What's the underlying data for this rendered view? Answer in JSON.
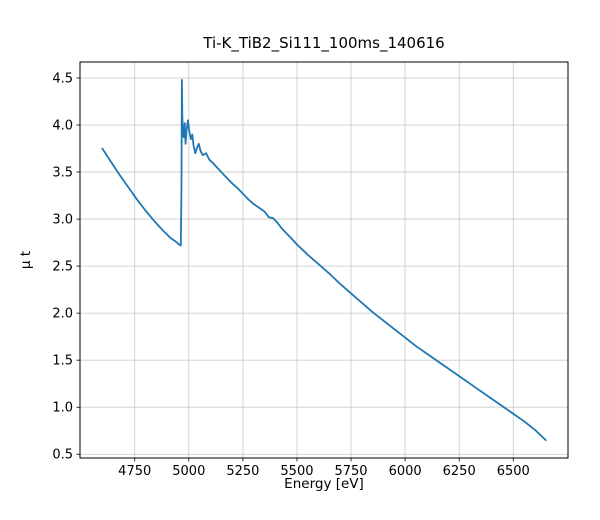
{
  "chart_data": {
    "type": "line",
    "title": "Ti-K_TiB2_Si111_100ms_140616",
    "xlabel": "Energy [eV]",
    "ylabel": "μ t",
    "xlim": [
      4497,
      6753
    ],
    "ylim": [
      0.46,
      4.67
    ],
    "xticks": [
      4750,
      5000,
      5250,
      5500,
      5750,
      6000,
      6250,
      6500
    ],
    "yticks": [
      0.5,
      1.0,
      1.5,
      2.0,
      2.5,
      3.0,
      3.5,
      4.0,
      4.5
    ],
    "grid": true,
    "legend": null,
    "line_color": "#1f77b4",
    "grid_color": "#c9c9c9",
    "series": [
      {
        "name": "mu_t",
        "x": [
          4600,
          4640,
          4680,
          4720,
          4760,
          4800,
          4840,
          4880,
          4915,
          4940,
          4955,
          4963,
          4966,
          4968,
          4970,
          4973,
          4977,
          4981,
          4985,
          4990,
          4996,
          5003,
          5010,
          5016,
          5022,
          5030,
          5038,
          5046,
          5055,
          5065,
          5080,
          5095,
          5110,
          5130,
          5150,
          5175,
          5200,
          5225,
          5250,
          5275,
          5300,
          5325,
          5350,
          5370,
          5390,
          5410,
          5430,
          5455,
          5480,
          5500,
          5550,
          5600,
          5650,
          5700,
          5750,
          5800,
          5850,
          5900,
          5950,
          6000,
          6050,
          6100,
          6150,
          6200,
          6250,
          6300,
          6350,
          6400,
          6450,
          6500,
          6550,
          6600,
          6650
        ],
        "y": [
          3.75,
          3.61,
          3.47,
          3.34,
          3.21,
          3.09,
          2.98,
          2.88,
          2.8,
          2.76,
          2.73,
          2.72,
          3.3,
          4.48,
          4.1,
          3.9,
          3.87,
          4.02,
          3.8,
          3.95,
          4.05,
          3.92,
          3.85,
          3.9,
          3.78,
          3.7,
          3.76,
          3.8,
          3.72,
          3.68,
          3.7,
          3.63,
          3.6,
          3.55,
          3.5,
          3.44,
          3.38,
          3.33,
          3.27,
          3.21,
          3.16,
          3.12,
          3.08,
          3.02,
          3.01,
          2.96,
          2.9,
          2.84,
          2.78,
          2.73,
          2.62,
          2.52,
          2.42,
          2.31,
          2.21,
          2.11,
          2.01,
          1.92,
          1.83,
          1.74,
          1.65,
          1.57,
          1.49,
          1.41,
          1.33,
          1.25,
          1.17,
          1.09,
          1.01,
          0.93,
          0.85,
          0.76,
          0.65
        ]
      }
    ]
  }
}
